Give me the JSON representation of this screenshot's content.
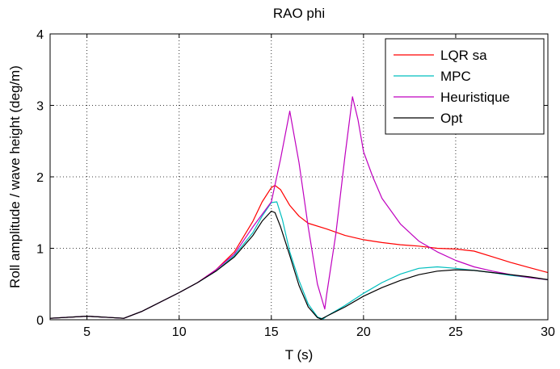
{
  "chart_data": {
    "type": "line",
    "title": "RAO phi",
    "xlabel": "T (s)",
    "ylabel": "Roll amplitude / wave height (deg/m)",
    "xlim": [
      3,
      30
    ],
    "ylim": [
      0,
      4
    ],
    "xticks": [
      5,
      10,
      15,
      20,
      25,
      30
    ],
    "yticks": [
      0,
      1,
      2,
      3,
      4
    ],
    "grid": true,
    "legend_position": "top-right",
    "series": [
      {
        "name": "LQR sa",
        "color": "#ff0000",
        "x": [
          3,
          5,
          7,
          8,
          9,
          10,
          11,
          12,
          13,
          14,
          14.5,
          15,
          15.2,
          15.5,
          16,
          16.5,
          17,
          18,
          19,
          20,
          21,
          22,
          23,
          24,
          25,
          26,
          27,
          28,
          29,
          30
        ],
        "y": [
          0.02,
          0.05,
          0.02,
          0.12,
          0.25,
          0.38,
          0.52,
          0.7,
          0.95,
          1.38,
          1.65,
          1.85,
          1.88,
          1.82,
          1.6,
          1.45,
          1.35,
          1.27,
          1.18,
          1.12,
          1.08,
          1.05,
          1.03,
          1.0,
          0.99,
          0.96,
          0.88,
          0.8,
          0.73,
          0.66
        ]
      },
      {
        "name": "MPC",
        "color": "#00bfbf",
        "x": [
          3,
          5,
          7,
          8,
          9,
          10,
          11,
          12,
          13,
          14,
          14.5,
          15,
          15.3,
          15.6,
          16,
          16.5,
          17,
          17.5,
          17.8,
          18,
          19,
          20,
          21,
          22,
          23,
          24,
          25,
          26,
          27,
          28,
          29,
          30
        ],
        "y": [
          0.02,
          0.05,
          0.02,
          0.12,
          0.25,
          0.38,
          0.52,
          0.68,
          0.9,
          1.22,
          1.45,
          1.64,
          1.65,
          1.4,
          0.95,
          0.55,
          0.22,
          0.04,
          0.01,
          0.05,
          0.2,
          0.37,
          0.52,
          0.64,
          0.72,
          0.74,
          0.72,
          0.69,
          0.66,
          0.62,
          0.59,
          0.56
        ]
      },
      {
        "name": "Heuristique",
        "color": "#bf00bf",
        "x": [
          3,
          5,
          7,
          8,
          9,
          10,
          11,
          12,
          13,
          14,
          15,
          15.5,
          16,
          16.5,
          17,
          17.5,
          17.9,
          18,
          18.5,
          19,
          19.4,
          19.7,
          20,
          20.5,
          21,
          22,
          23,
          24,
          25,
          26,
          27,
          28,
          29,
          30
        ],
        "y": [
          0.02,
          0.05,
          0.02,
          0.12,
          0.25,
          0.38,
          0.52,
          0.7,
          0.92,
          1.3,
          1.65,
          2.25,
          2.92,
          2.2,
          1.3,
          0.5,
          0.15,
          0.35,
          1.2,
          2.3,
          3.12,
          2.8,
          2.35,
          2.0,
          1.7,
          1.34,
          1.1,
          0.95,
          0.83,
          0.74,
          0.68,
          0.63,
          0.59,
          0.56
        ]
      },
      {
        "name": "Opt",
        "color": "#000000",
        "x": [
          3,
          5,
          7,
          8,
          9,
          10,
          11,
          12,
          13,
          14,
          14.5,
          15,
          15.2,
          15.5,
          16,
          16.5,
          17,
          17.5,
          17.7,
          18,
          19,
          20,
          21,
          22,
          23,
          24,
          25,
          26,
          27,
          28,
          29,
          30
        ],
        "y": [
          0.02,
          0.05,
          0.02,
          0.12,
          0.25,
          0.38,
          0.52,
          0.68,
          0.88,
          1.18,
          1.38,
          1.52,
          1.5,
          1.3,
          0.9,
          0.48,
          0.18,
          0.03,
          0.01,
          0.05,
          0.18,
          0.33,
          0.45,
          0.55,
          0.63,
          0.68,
          0.7,
          0.69,
          0.66,
          0.63,
          0.6,
          0.56
        ]
      }
    ]
  }
}
